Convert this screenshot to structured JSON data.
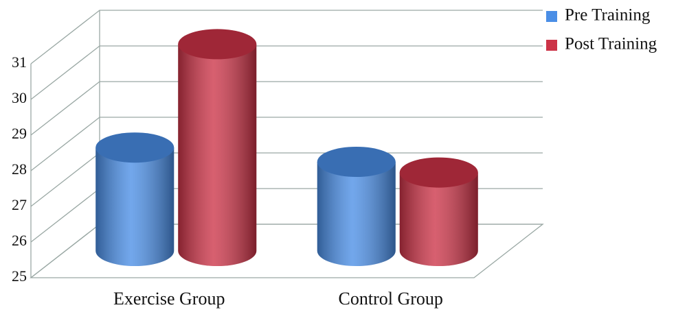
{
  "chart_data": {
    "type": "bar",
    "categories": [
      "Exercise Group",
      "Control Group"
    ],
    "series": [
      {
        "name": "Pre Training",
        "color": "#4a8ee6",
        "values": [
          27.9,
          27.5
        ]
      },
      {
        "name": "Post Training",
        "color": "#cc3347",
        "values": [
          30.8,
          27.2
        ]
      }
    ],
    "ylim": [
      25,
      31
    ],
    "yticks": [
      25,
      26,
      27,
      28,
      29,
      30,
      31
    ],
    "grid": true,
    "legend": "upper right"
  }
}
